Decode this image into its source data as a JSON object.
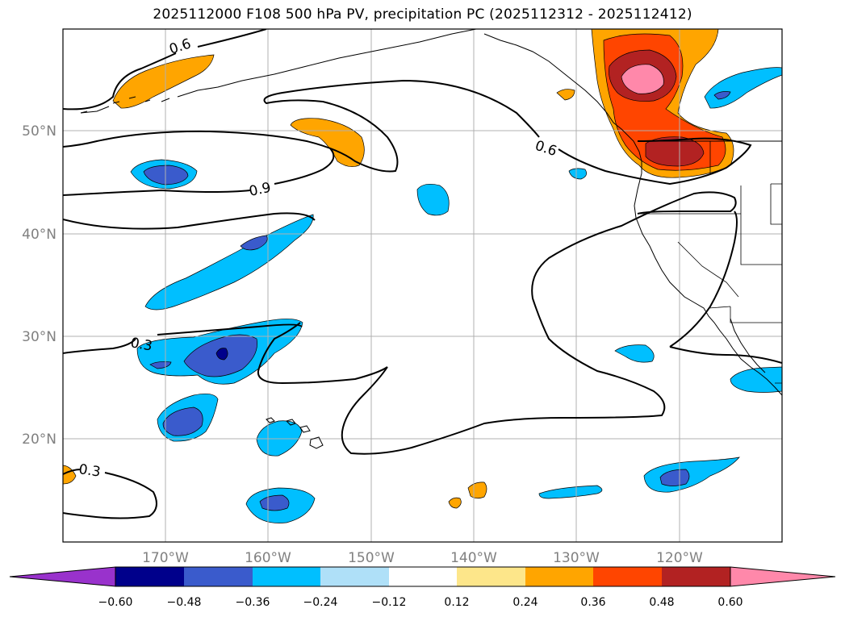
{
  "title": "2025112000 F108 500 hPa PV, precipitation PC (2025112312 - 2025112412)",
  "map": {
    "lat_ticks": [
      "50°N",
      "40°N",
      "30°N",
      "20°N"
    ],
    "lon_ticks": [
      "170°W",
      "160°W",
      "150°W",
      "140°W",
      "130°W",
      "120°W"
    ],
    "contour_labels": [
      "0.6",
      "0.6",
      "0.9",
      "0.3",
      "0.3"
    ]
  },
  "colorbar": {
    "labels": [
      "−0.60",
      "−0.48",
      "−0.36",
      "−0.24",
      "−0.12",
      "0.12",
      "0.24",
      "0.36",
      "0.48",
      "0.60"
    ],
    "colors": [
      "#9932cc",
      "#00008b",
      "#3a5bcc",
      "#00bfff",
      "#afe0f8",
      "#ffffff",
      "#fde68a",
      "#ffa500",
      "#ff4500",
      "#b22222",
      "#ff88aa"
    ]
  }
}
